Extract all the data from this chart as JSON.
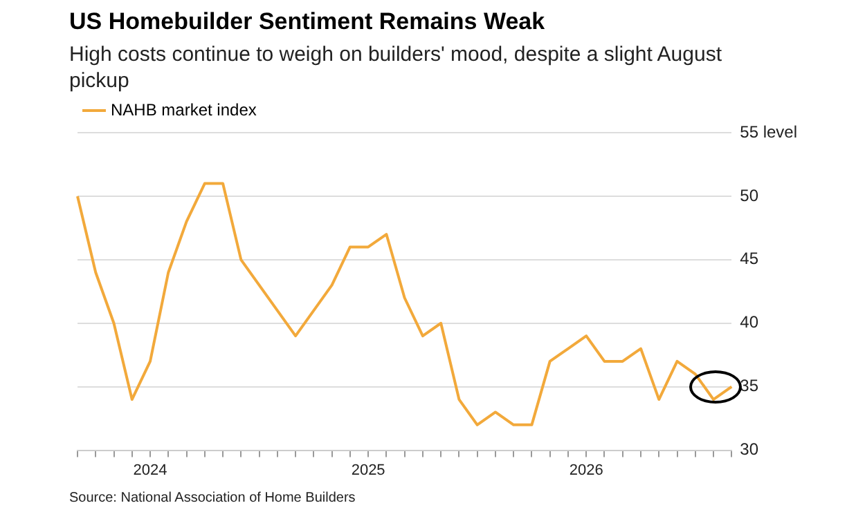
{
  "chart_data": {
    "type": "line",
    "title": "US Homebuilder Sentiment Remains Weak",
    "subtitle": "High costs continue to weigh on builders' mood, despite a slight August pickup",
    "categories": [
      null,
      null,
      null,
      null,
      "2024",
      null,
      null,
      null,
      null,
      null,
      null,
      null,
      null,
      null,
      null,
      null,
      "2025",
      null,
      null,
      null,
      null,
      null,
      null,
      null,
      null,
      null,
      null,
      null,
      "2026",
      null,
      null,
      null,
      null,
      null,
      null,
      null,
      null
    ],
    "series": [
      {
        "name": "NAHB market index",
        "color": "#f2a93b",
        "values": [
          50,
          44,
          40,
          34,
          37,
          44,
          48,
          51,
          51,
          45,
          43,
          41,
          39,
          41,
          43,
          46,
          46,
          47,
          42,
          39,
          40,
          34,
          32,
          33,
          32,
          32,
          37,
          38,
          39,
          37,
          37,
          38,
          34,
          37,
          36,
          34,
          35
        ]
      }
    ],
    "ylim": [
      30,
      55
    ],
    "yticks": [
      30,
      35,
      40,
      45,
      50,
      {
        "value": 55,
        "label": "55 level"
      }
    ],
    "grid": "y",
    "legend": "top left",
    "marker": "none",
    "line_style": "solid",
    "annotations": [
      "Source: National Association of Home Builders"
    ]
  }
}
